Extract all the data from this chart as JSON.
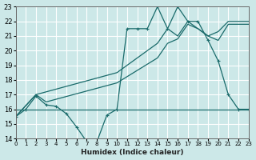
{
  "xlabel": "Humidex (Indice chaleur)",
  "bg_color": "#cce8e8",
  "grid_color": "#ffffff",
  "line_color": "#1a6b6b",
  "xlim": [
    0,
    23
  ],
  "ylim": [
    14,
    23
  ],
  "xticks": [
    0,
    1,
    2,
    3,
    4,
    5,
    6,
    7,
    8,
    9,
    10,
    11,
    12,
    13,
    14,
    15,
    16,
    17,
    18,
    19,
    20,
    21,
    22,
    23
  ],
  "yticks": [
    14,
    15,
    16,
    17,
    18,
    19,
    20,
    21,
    22,
    23
  ],
  "s1_x": [
    0,
    1,
    2,
    3,
    4,
    5,
    6,
    7,
    8,
    9,
    10,
    11,
    12,
    13,
    14,
    15,
    16,
    17,
    18,
    19,
    20,
    21,
    22,
    23
  ],
  "s1_y": [
    15.5,
    16.0,
    16.9,
    16.3,
    16.2,
    15.7,
    14.8,
    13.8,
    13.75,
    15.6,
    16.0,
    21.5,
    21.5,
    21.5,
    23.0,
    21.5,
    23.0,
    22.0,
    22.0,
    20.7,
    19.3,
    17.0,
    16.0,
    16.0
  ],
  "s2_x": [
    0,
    1,
    2,
    3,
    4,
    5,
    6,
    7,
    8,
    9,
    10,
    11,
    12,
    13,
    14,
    15,
    16,
    17,
    18,
    19,
    20,
    23
  ],
  "s2_y": [
    16.0,
    16.0,
    16.0,
    16.0,
    16.0,
    16.0,
    16.0,
    16.0,
    16.0,
    16.0,
    16.0,
    16.0,
    16.0,
    16.0,
    16.0,
    16.0,
    16.0,
    16.0,
    16.0,
    16.0,
    16.0,
    16.0
  ],
  "s3_x": [
    0,
    2,
    10,
    14,
    15,
    16,
    17,
    18,
    19,
    20,
    21,
    22,
    23
  ],
  "s3_y": [
    15.5,
    17.0,
    18.5,
    20.5,
    21.5,
    21.0,
    22.0,
    21.5,
    21.0,
    21.3,
    22.0,
    22.0,
    22.0
  ],
  "s4_x": [
    0,
    2,
    3,
    10,
    14,
    15,
    16,
    17,
    18,
    19,
    20,
    21,
    22,
    23
  ],
  "s4_y": [
    15.5,
    17.0,
    16.5,
    17.8,
    19.5,
    20.5,
    20.8,
    21.8,
    21.5,
    21.0,
    20.7,
    21.8,
    21.8,
    21.8
  ]
}
